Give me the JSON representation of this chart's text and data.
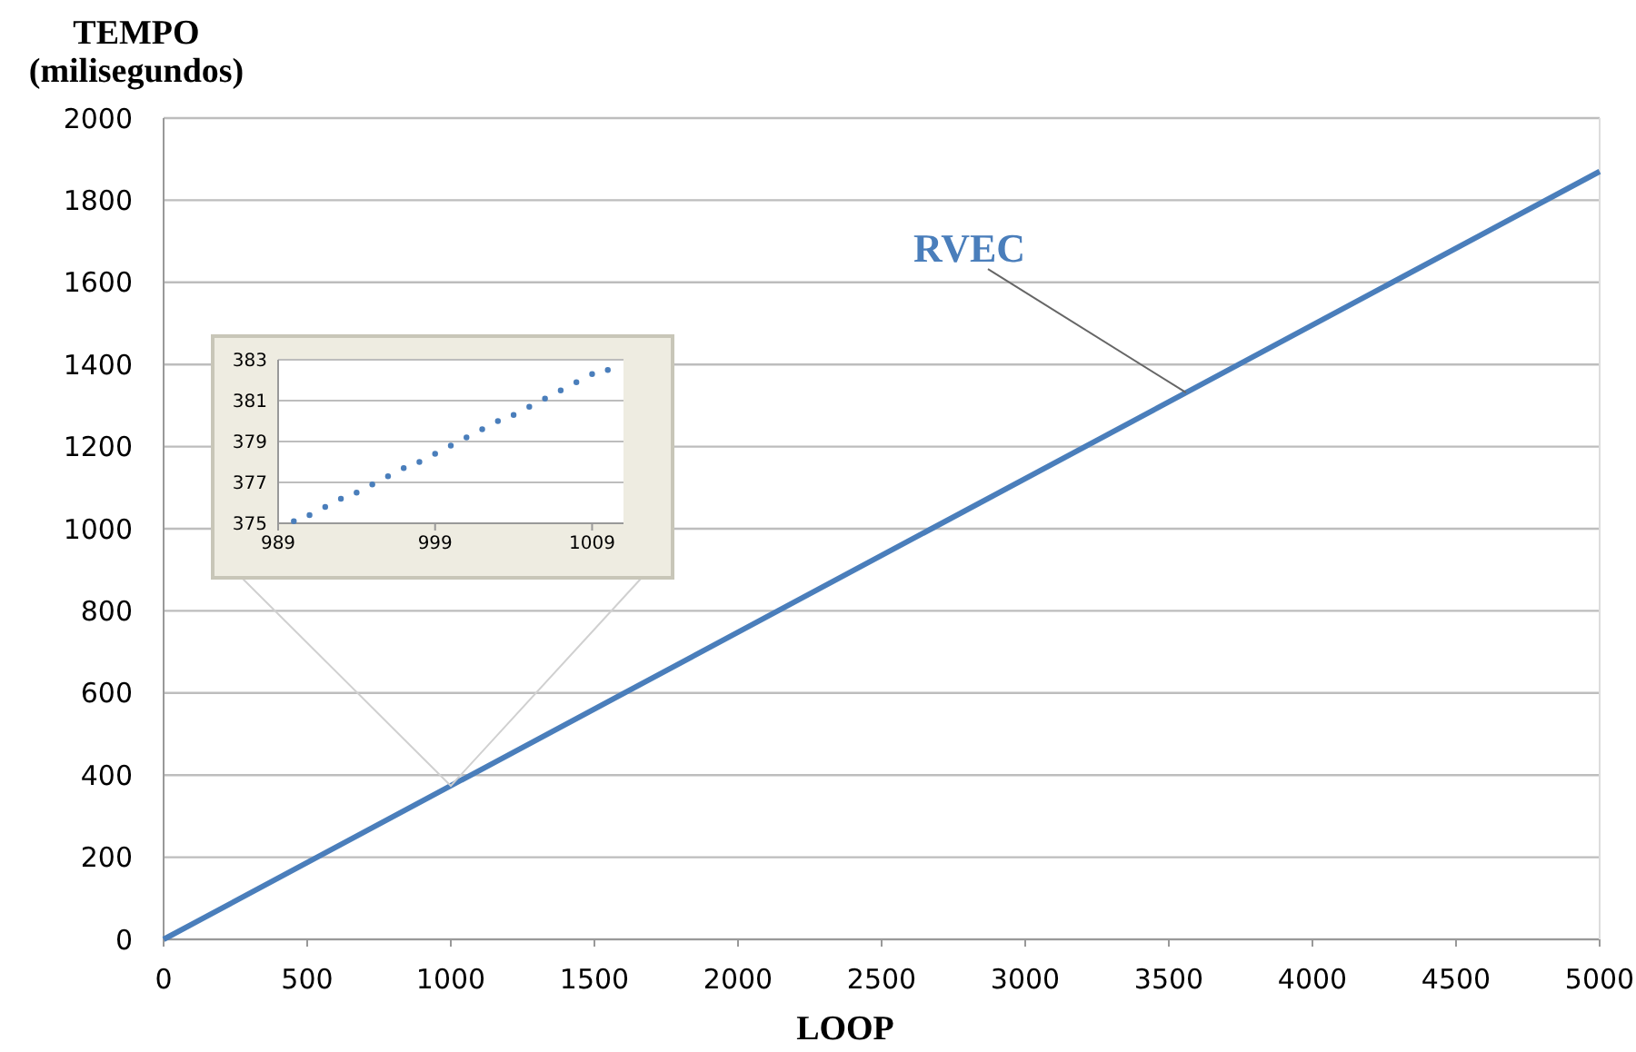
{
  "chart_data": [
    {
      "type": "line",
      "xlabel": "LOOP",
      "ylabel": "TEMPO\n(milisegundos)",
      "x": [
        0,
        1000,
        5000
      ],
      "series": [
        {
          "name": "RVEC",
          "color": "#4a7ebb",
          "values": [
            0,
            374,
            1870
          ]
        }
      ],
      "xlim": [
        0,
        5000
      ],
      "xticks": [
        0,
        500,
        1000,
        1500,
        2000,
        2500,
        3000,
        3500,
        4000,
        4500,
        5000
      ],
      "ylim": [
        0,
        2000
      ],
      "yticks": [
        0,
        200,
        400,
        600,
        800,
        1000,
        1200,
        1400,
        1600,
        1800,
        2000
      ],
      "grid": "y",
      "marker": "none",
      "line_style": "solid"
    },
    {
      "type": "scatter",
      "x": [
        990,
        991,
        992,
        993,
        994,
        995,
        996,
        997,
        998,
        999,
        1000,
        1001,
        1002,
        1003,
        1004,
        1005,
        1006,
        1007,
        1008,
        1009,
        1010
      ],
      "series": [
        {
          "color": "#4a7ebb",
          "values": [
            375.1,
            375.4,
            375.8,
            376.2,
            376.5,
            376.9,
            377.3,
            377.7,
            378.0,
            378.4,
            378.8,
            379.2,
            379.6,
            380.0,
            380.3,
            380.7,
            381.1,
            381.5,
            381.9,
            382.3,
            382.5
          ]
        }
      ],
      "xlim": [
        989,
        1011
      ],
      "xticks": [
        989,
        999,
        1009
      ],
      "ylim": [
        375,
        383
      ],
      "yticks": [
        375,
        377,
        379,
        381,
        383
      ],
      "grid": "y",
      "marker": "circle"
    }
  ]
}
